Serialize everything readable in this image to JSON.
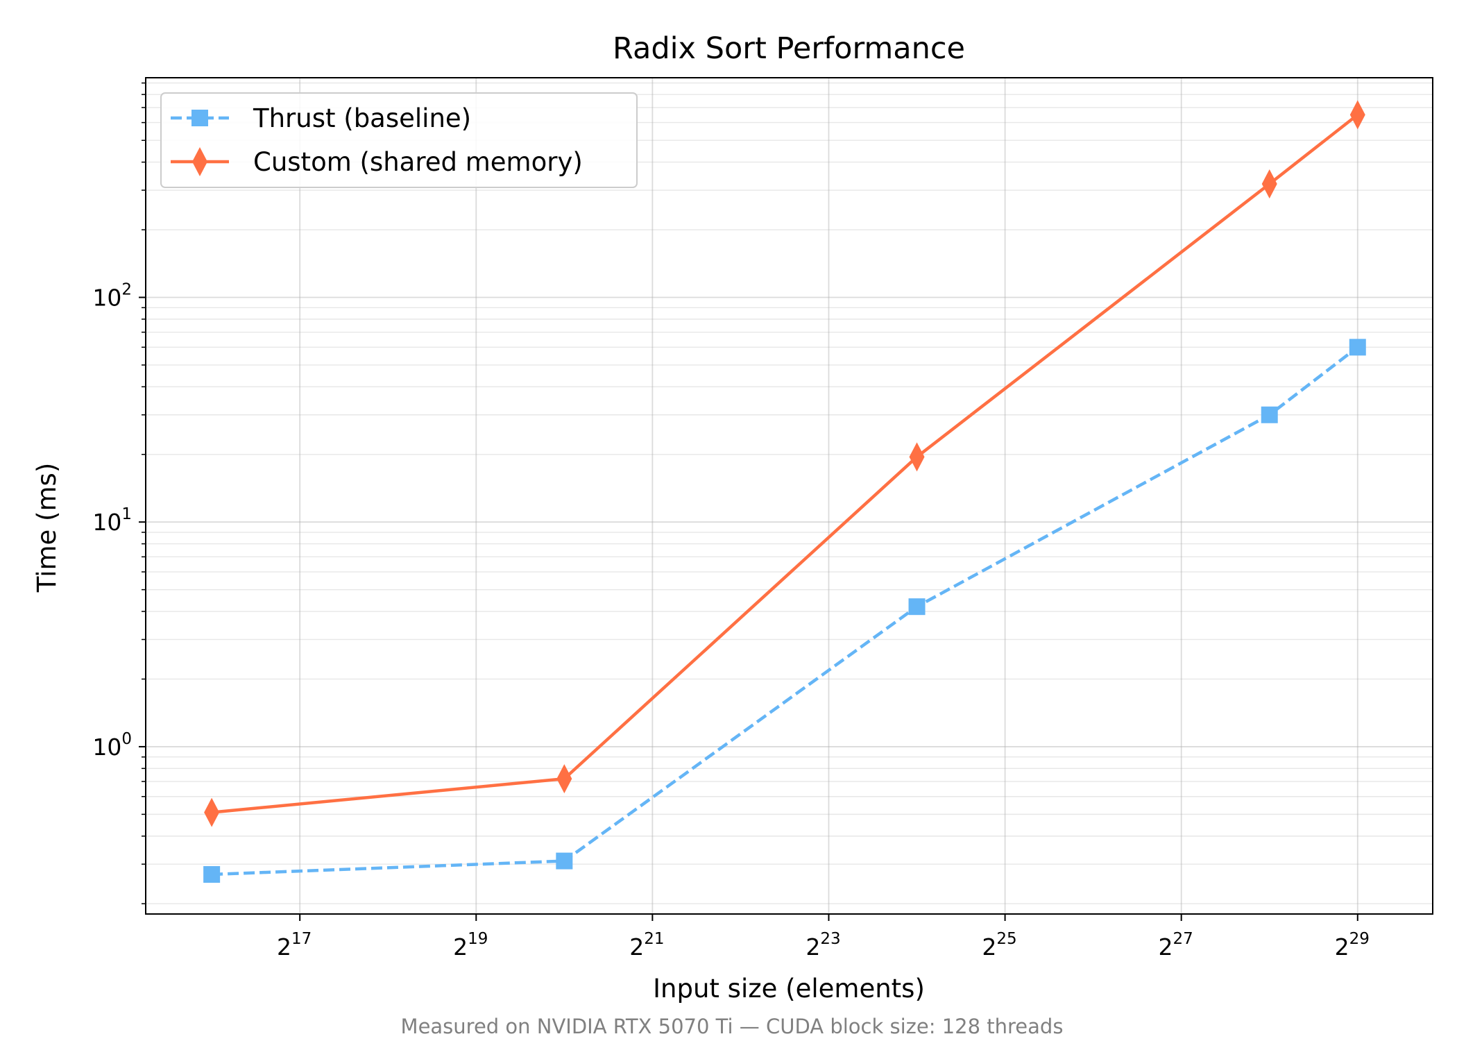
{
  "chart_data": {
    "type": "line",
    "title": "Radix Sort Performance",
    "xlabel": "Input size (elements)",
    "ylabel": "Time (ms)",
    "x_scale": "log2",
    "y_scale": "log10",
    "xlim": [
      39000,
      969000000
    ],
    "ylim": [
      0.18,
      950
    ],
    "x_ticks": [
      {
        "value": 131072,
        "base": "2",
        "exp": "17"
      },
      {
        "value": 524288,
        "base": "2",
        "exp": "19"
      },
      {
        "value": 2097152,
        "base": "2",
        "exp": "21"
      },
      {
        "value": 8388608,
        "base": "2",
        "exp": "23"
      },
      {
        "value": 33554432,
        "base": "2",
        "exp": "25"
      },
      {
        "value": 134217728,
        "base": "2",
        "exp": "27"
      },
      {
        "value": 536870912,
        "base": "2",
        "exp": "29"
      }
    ],
    "y_ticks": [
      {
        "value": 1,
        "base": "10",
        "exp": "0"
      },
      {
        "value": 10,
        "base": "10",
        "exp": "1"
      },
      {
        "value": 100,
        "base": "10",
        "exp": "2"
      }
    ],
    "x": [
      65536,
      1048576,
      16777216,
      268435456,
      536870912
    ],
    "series": [
      {
        "name": "Thrust (baseline)",
        "values": [
          0.27,
          0.31,
          4.2,
          30,
          60
        ],
        "color": "#64b5f6",
        "marker": "square",
        "line_style": "dashed"
      },
      {
        "name": "Custom (shared memory)",
        "values": [
          0.51,
          0.72,
          19.5,
          320,
          650
        ],
        "color": "#ff7043",
        "marker": "thin-diamond",
        "line_style": "solid"
      }
    ],
    "grid": true,
    "legend_position": "top-left"
  },
  "footnote": "Measured on NVIDIA RTX 5070 Ti — CUDA block size: 128 threads"
}
